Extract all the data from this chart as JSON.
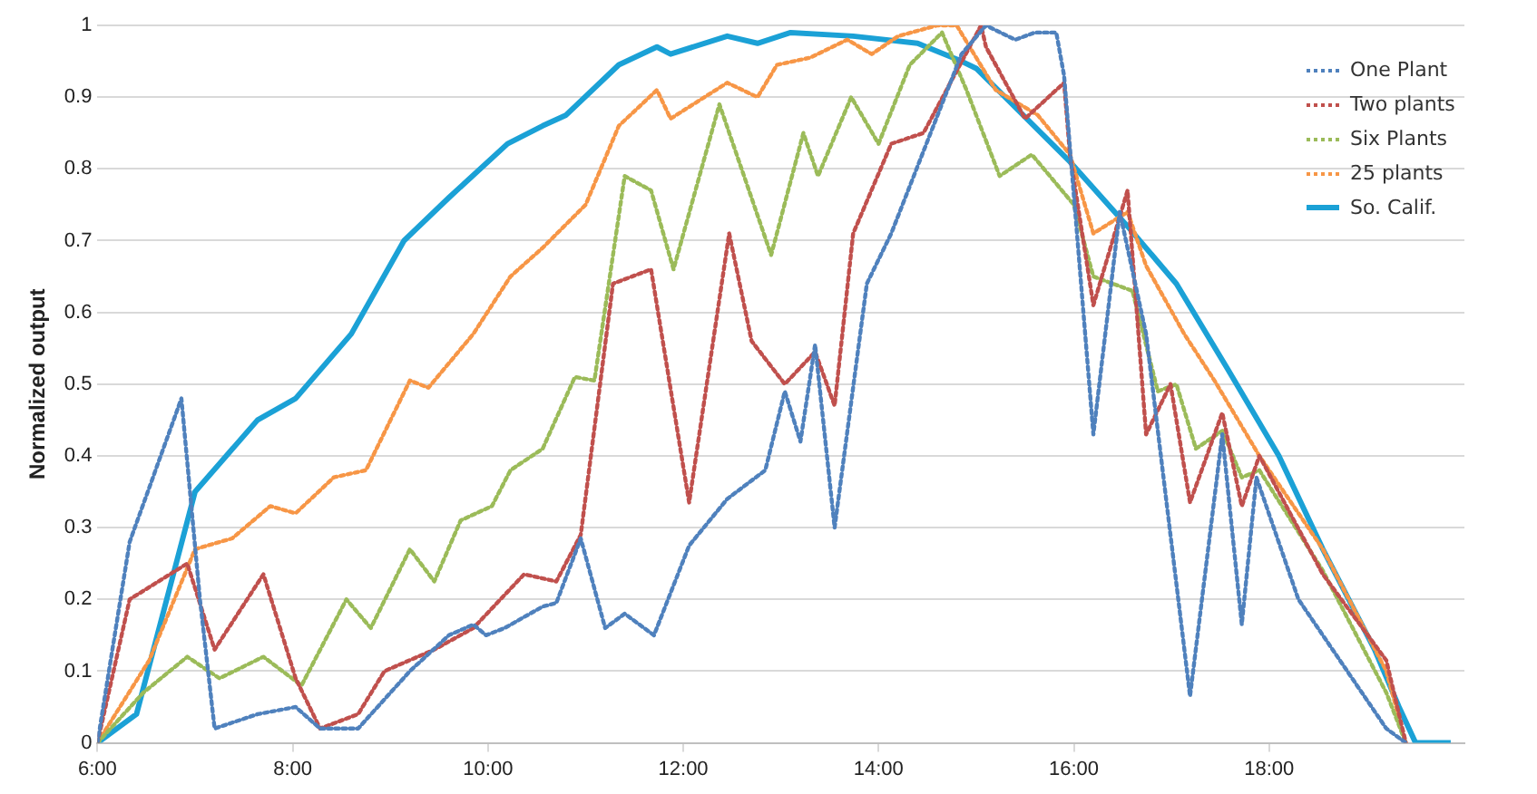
{
  "chart_data": {
    "type": "line",
    "ylabel": "Normalized output",
    "xlim": [
      6,
      20
    ],
    "xticks": [
      {
        "value": 6,
        "label": "6:00"
      },
      {
        "value": 8,
        "label": "8:00"
      },
      {
        "value": 10,
        "label": "10:00"
      },
      {
        "value": 12,
        "label": "12:00"
      },
      {
        "value": 14,
        "label": "14:00"
      },
      {
        "value": 16,
        "label": "16:00"
      },
      {
        "value": 18,
        "label": "18:00"
      }
    ],
    "ylim": [
      0,
      1
    ],
    "yticks": [
      0,
      0.1,
      0.2,
      0.3,
      0.4,
      0.5,
      0.6,
      0.7,
      0.8,
      0.9,
      1
    ],
    "grid": "y",
    "legend": "top right",
    "marker": "none",
    "series": [
      {
        "name": "One Plant",
        "color": "#4f81bd",
        "line_style": "dotted",
        "x": [
          6,
          6.33,
          6.86,
          7.05,
          7.2,
          7.64,
          8.03,
          8.28,
          8.67,
          9.2,
          9.6,
          9.85,
          9.98,
          10.17,
          10.56,
          10.7,
          10.95,
          11.2,
          11.4,
          11.7,
          12.06,
          12.45,
          12.84,
          13.04,
          13.2,
          13.35,
          13.55,
          13.88,
          14.13,
          14.85,
          15.1,
          15.4,
          15.6,
          15.82,
          15.9,
          16.2,
          16.47,
          16.74,
          17.19,
          17.52,
          17.72,
          17.87,
          18.3,
          18.8,
          19.2,
          19.4
        ],
        "values": [
          0,
          0.28,
          0.48,
          0.2,
          0.02,
          0.04,
          0.05,
          0.02,
          0.02,
          0.1,
          0.15,
          0.165,
          0.15,
          0.16,
          0.19,
          0.195,
          0.285,
          0.16,
          0.18,
          0.15,
          0.275,
          0.34,
          0.38,
          0.49,
          0.42,
          0.555,
          0.3,
          0.64,
          0.71,
          0.96,
          1,
          0.98,
          0.99,
          0.99,
          0.93,
          0.43,
          0.74,
          0.57,
          0.065,
          0.43,
          0.165,
          0.37,
          0.2,
          0.1,
          0.02,
          0
        ]
      },
      {
        "name": "Two plants",
        "color": "#c0504d",
        "line_style": "dotted",
        "x": [
          6,
          6.33,
          6.92,
          7.2,
          7.7,
          8.03,
          8.28,
          8.67,
          8.94,
          9.45,
          9.85,
          10.37,
          10.7,
          10.95,
          11.28,
          11.67,
          12.06,
          12.47,
          12.7,
          13.04,
          13.35,
          13.55,
          13.74,
          14.13,
          14.46,
          15.05,
          15.1,
          15.5,
          15.9,
          15.96,
          16.2,
          16.55,
          16.74,
          16.99,
          17.19,
          17.52,
          17.72,
          17.9,
          18.55,
          19.2,
          19.4
        ],
        "values": [
          0,
          0.2,
          0.25,
          0.13,
          0.235,
          0.09,
          0.02,
          0.04,
          0.1,
          0.13,
          0.16,
          0.235,
          0.225,
          0.29,
          0.64,
          0.66,
          0.335,
          0.71,
          0.56,
          0.5,
          0.545,
          0.47,
          0.71,
          0.835,
          0.85,
          1,
          0.97,
          0.87,
          0.92,
          0.82,
          0.61,
          0.77,
          0.43,
          0.5,
          0.335,
          0.46,
          0.33,
          0.4,
          0.235,
          0.115,
          0
        ]
      },
      {
        "name": "Six Plants",
        "color": "#9bbb59",
        "line_style": "dotted",
        "x": [
          6,
          6.47,
          6.92,
          7.25,
          7.7,
          8.09,
          8.55,
          8.8,
          9.2,
          9.45,
          9.72,
          10.04,
          10.23,
          10.56,
          10.89,
          11.09,
          11.4,
          11.67,
          11.9,
          12.37,
          12.9,
          13.23,
          13.38,
          13.72,
          14,
          14.32,
          14.65,
          14.9,
          15.24,
          15.57,
          16,
          16.2,
          16.6,
          16.86,
          17.05,
          17.25,
          17.52,
          17.72,
          17.9,
          18.55,
          19.2,
          19.4
        ],
        "values": [
          0,
          0.07,
          0.12,
          0.09,
          0.12,
          0.08,
          0.2,
          0.16,
          0.27,
          0.225,
          0.31,
          0.33,
          0.38,
          0.41,
          0.51,
          0.505,
          0.79,
          0.77,
          0.66,
          0.89,
          0.68,
          0.85,
          0.79,
          0.9,
          0.835,
          0.945,
          0.99,
          0.91,
          0.79,
          0.82,
          0.75,
          0.65,
          0.63,
          0.49,
          0.5,
          0.41,
          0.435,
          0.37,
          0.38,
          0.24,
          0.07,
          0
        ]
      },
      {
        "name": "25 plants",
        "color": "#f79646",
        "line_style": "dotted",
        "x": [
          6,
          6.53,
          7,
          7.38,
          7.77,
          8.03,
          8.42,
          8.75,
          9.2,
          9.39,
          9.85,
          10.23,
          10.56,
          11,
          11.34,
          11.73,
          11.87,
          12.45,
          12.76,
          12.96,
          13.3,
          13.68,
          13.93,
          14.2,
          14.6,
          14.8,
          15.2,
          15.63,
          15.96,
          16.2,
          16.55,
          16.74,
          17.13,
          17.44,
          17.9,
          18.55,
          19.2,
          19.4
        ],
        "values": [
          0,
          0.115,
          0.27,
          0.285,
          0.33,
          0.32,
          0.37,
          0.38,
          0.505,
          0.495,
          0.57,
          0.65,
          0.69,
          0.75,
          0.86,
          0.91,
          0.87,
          0.92,
          0.9,
          0.945,
          0.955,
          0.98,
          0.96,
          0.985,
          1,
          1,
          0.91,
          0.875,
          0.82,
          0.71,
          0.74,
          0.665,
          0.57,
          0.505,
          0.4,
          0.27,
          0.1,
          0
        ]
      },
      {
        "name": "So. Calif.",
        "color": "#1ba1d6",
        "line_style": "solid",
        "x": [
          6,
          6.4,
          7,
          7.64,
          8.03,
          8.6,
          9.14,
          9.6,
          10.2,
          10.56,
          10.8,
          11.34,
          11.73,
          11.87,
          12.45,
          12.76,
          13.1,
          13.74,
          14.4,
          14.85,
          15,
          15.96,
          16.55,
          17.05,
          17.58,
          18.1,
          18.55,
          19.08,
          19.33,
          19.5,
          19.86
        ],
        "values": [
          0,
          0.04,
          0.35,
          0.45,
          0.48,
          0.57,
          0.7,
          0.76,
          0.835,
          0.86,
          0.875,
          0.945,
          0.97,
          0.96,
          0.985,
          0.975,
          0.99,
          0.985,
          0.975,
          0.95,
          0.94,
          0.81,
          0.72,
          0.64,
          0.52,
          0.4,
          0.27,
          0.13,
          0.05,
          0,
          0
        ]
      }
    ]
  }
}
